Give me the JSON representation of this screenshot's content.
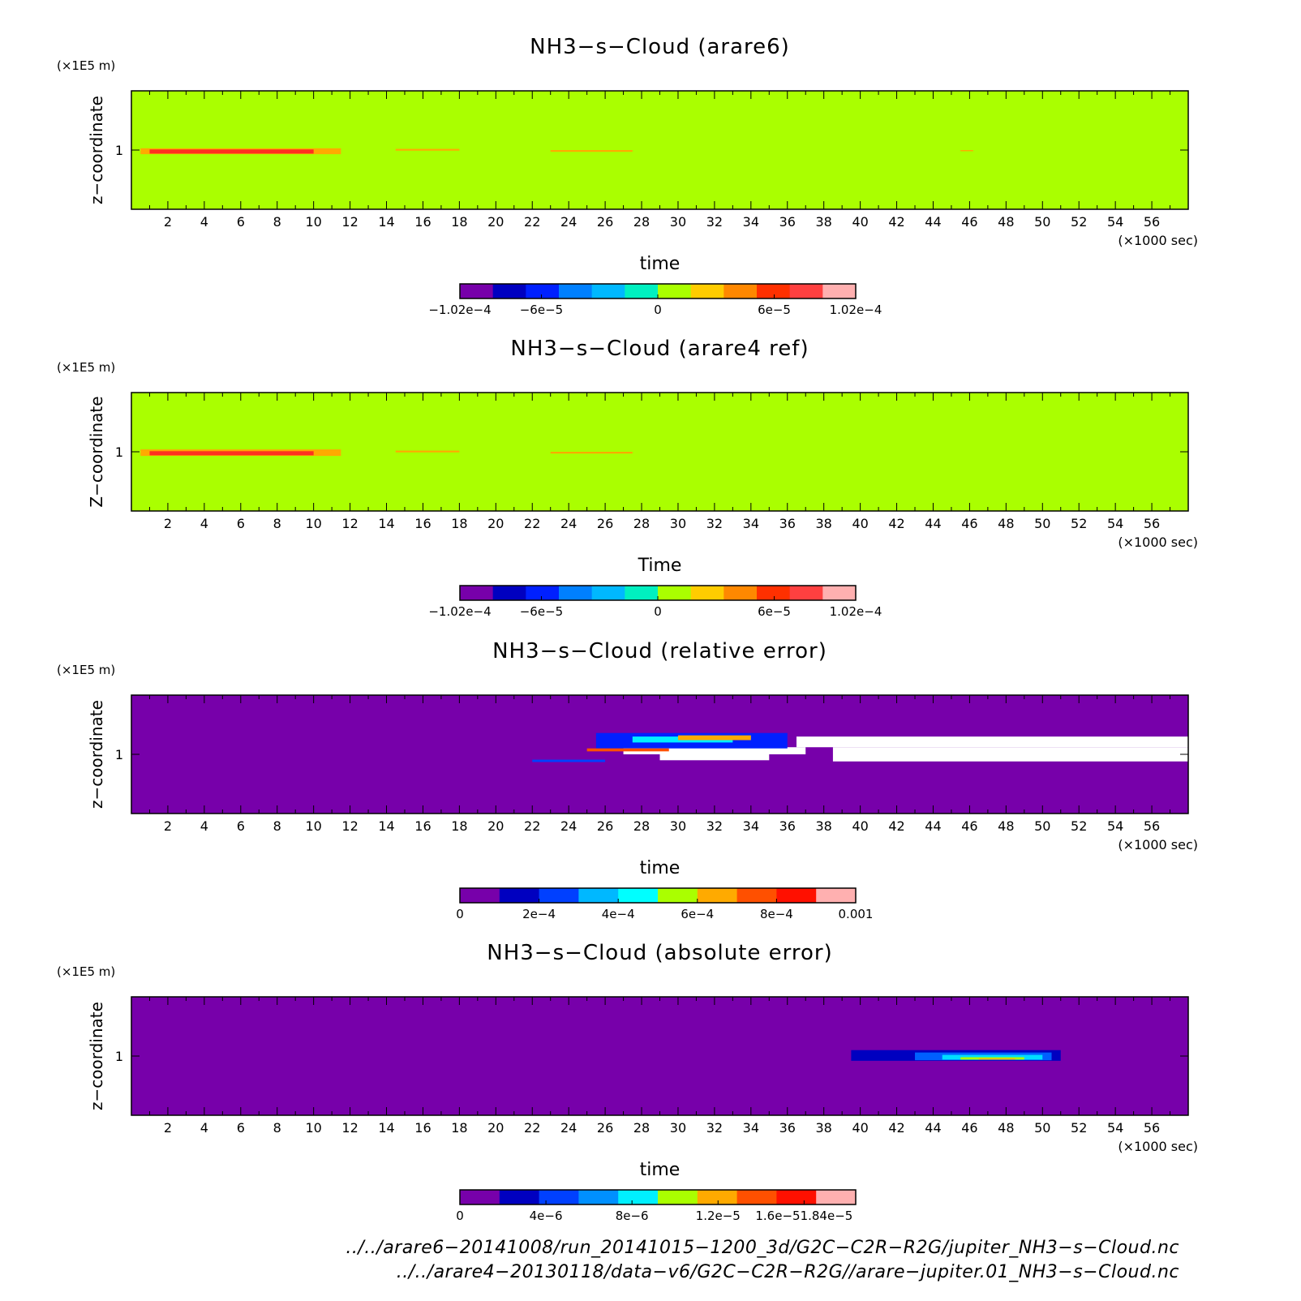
{
  "chart_data": [
    {
      "type": "heatmap",
      "title": "NH3−s−Cloud (arare6)",
      "xlabel": "time",
      "ylabel": "z−coordinate",
      "x_unit": "(×1000 sec)",
      "y_unit": "(×1E5 m)",
      "xlim": [
        0,
        58
      ],
      "ylim": [
        0,
        2
      ],
      "x_ticks": [
        "2",
        "4",
        "6",
        "8",
        "10",
        "12",
        "14",
        "16",
        "18",
        "20",
        "22",
        "24",
        "26",
        "28",
        "30",
        "32",
        "34",
        "36",
        "38",
        "40",
        "42",
        "44",
        "46",
        "48",
        "50",
        "52",
        "54",
        "56"
      ],
      "y_ticks": [
        "1"
      ],
      "background_color": "#aaff00",
      "features": [
        {
          "x": [
            0.5,
            11.5
          ],
          "y": [
            0.93,
            1.03
          ],
          "color": "#ffaa00"
        },
        {
          "x": [
            1.0,
            10.0
          ],
          "y": [
            0.94,
            1.01
          ],
          "color": "#ff3020"
        },
        {
          "x": [
            14.5,
            18.0
          ],
          "y": [
            0.99,
            1.02
          ],
          "color": "#ffaa00"
        },
        {
          "x": [
            23.0,
            27.5
          ],
          "y": [
            0.97,
            1.0
          ],
          "color": "#ffaa00"
        },
        {
          "x": [
            45.5,
            46.2
          ],
          "y": [
            0.98,
            1.0
          ],
          "color": "#ffaa00"
        }
      ],
      "colorbar": {
        "colors": [
          "#7700aa",
          "#0000c0",
          "#0020ff",
          "#0080ff",
          "#00b8ff",
          "#00f0c0",
          "#aaff00",
          "#ffcc00",
          "#ff8800",
          "#ff3000",
          "#ff4040",
          "#ffb0b0"
        ],
        "tick_labels": [
          "−1.02e−4",
          "−6e−5",
          "0",
          "6e−5",
          "1.02e−4"
        ],
        "tick_values": [
          -0.000102,
          -6e-05,
          0,
          6e-05,
          0.000102
        ],
        "range": [
          -0.000102,
          0.000102
        ]
      }
    },
    {
      "type": "heatmap",
      "title": "NH3−s−Cloud (arare4 ref)",
      "xlabel": "Time",
      "ylabel": "Z−coordinate",
      "x_unit": "(×1000 sec)",
      "y_unit": "(×1E5 m)",
      "xlim": [
        0,
        58
      ],
      "ylim": [
        0,
        2
      ],
      "x_ticks": [
        "2",
        "4",
        "6",
        "8",
        "10",
        "12",
        "14",
        "16",
        "18",
        "20",
        "22",
        "24",
        "26",
        "28",
        "30",
        "32",
        "34",
        "36",
        "38",
        "40",
        "42",
        "44",
        "46",
        "48",
        "50",
        "52",
        "54",
        "56"
      ],
      "y_ticks": [
        "1"
      ],
      "background_color": "#aaff00",
      "features": [
        {
          "x": [
            0.5,
            11.5
          ],
          "y": [
            0.93,
            1.04
          ],
          "color": "#ffaa00"
        },
        {
          "x": [
            1.0,
            10.0
          ],
          "y": [
            0.94,
            1.01
          ],
          "color": "#ff3020"
        },
        {
          "x": [
            14.5,
            18.0
          ],
          "y": [
            0.99,
            1.02
          ],
          "color": "#ffaa00"
        },
        {
          "x": [
            23.0,
            27.5
          ],
          "y": [
            0.97,
            1.0
          ],
          "color": "#ffaa00"
        }
      ],
      "colorbar": {
        "colors": [
          "#7700aa",
          "#0000c0",
          "#0020ff",
          "#0080ff",
          "#00b8ff",
          "#00f0c0",
          "#aaff00",
          "#ffcc00",
          "#ff8800",
          "#ff3000",
          "#ff4040",
          "#ffb0b0"
        ],
        "tick_labels": [
          "−1.02e−4",
          "−6e−5",
          "0",
          "6e−5",
          "1.02e−4"
        ],
        "tick_values": [
          -0.000102,
          -6e-05,
          0,
          6e-05,
          0.000102
        ],
        "range": [
          -0.000102,
          0.000102
        ]
      }
    },
    {
      "type": "heatmap",
      "title": "NH3−s−Cloud (relative error)",
      "xlabel": "time",
      "ylabel": "z−coordinate",
      "x_unit": "(×1000 sec)",
      "y_unit": "(×1E5 m)",
      "xlim": [
        0,
        58
      ],
      "ylim": [
        0,
        2
      ],
      "x_ticks": [
        "2",
        "4",
        "6",
        "8",
        "10",
        "12",
        "14",
        "16",
        "18",
        "20",
        "22",
        "24",
        "26",
        "28",
        "30",
        "32",
        "34",
        "36",
        "38",
        "40",
        "42",
        "44",
        "46",
        "48",
        "50",
        "52",
        "54",
        "56"
      ],
      "y_ticks": [
        "1"
      ],
      "background_color": "#7700aa",
      "features": [
        {
          "x": [
            36.5,
            58.0
          ],
          "y": [
            1.12,
            1.3
          ],
          "color": "#ffffff"
        },
        {
          "x": [
            38.5,
            58.0
          ],
          "y": [
            0.88,
            1.12
          ],
          "color": "#ffffff"
        },
        {
          "x": [
            29.0,
            35.0
          ],
          "y": [
            0.9,
            1.0
          ],
          "color": "#ffffff"
        },
        {
          "x": [
            27.0,
            37.0
          ],
          "y": [
            1.0,
            1.12
          ],
          "color": "#ffffff"
        },
        {
          "x": [
            22.0,
            26.0
          ],
          "y": [
            0.87,
            0.91
          ],
          "color": "#0040ff"
        },
        {
          "x": [
            25.5,
            36.0
          ],
          "y": [
            1.1,
            1.36
          ],
          "color": "#0020ff"
        },
        {
          "x": [
            27.5,
            33.0
          ],
          "y": [
            1.2,
            1.3
          ],
          "color": "#00f0ff"
        },
        {
          "x": [
            25.0,
            29.5
          ],
          "y": [
            1.05,
            1.1
          ],
          "color": "#ff5000"
        },
        {
          "x": [
            30.0,
            34.0
          ],
          "y": [
            1.24,
            1.32
          ],
          "color": "#ffaa00"
        }
      ],
      "colorbar": {
        "colors": [
          "#7700aa",
          "#0000c0",
          "#0040ff",
          "#00b8ff",
          "#00ffff",
          "#aaff00",
          "#ffaa00",
          "#ff5000",
          "#ff1000",
          "#ffb0b0"
        ],
        "tick_labels": [
          "0",
          "2e−4",
          "4e−4",
          "6e−4",
          "8e−4",
          "0.001"
        ],
        "tick_values": [
          0,
          0.0002,
          0.0004,
          0.0006,
          0.0008,
          0.001
        ],
        "range": [
          0,
          0.001
        ]
      }
    },
    {
      "type": "heatmap",
      "title": "NH3−s−Cloud (absolute error)",
      "xlabel": "time",
      "ylabel": "z−coordinate",
      "x_unit": "(×1000 sec)",
      "y_unit": "(×1E5 m)",
      "xlim": [
        0,
        58
      ],
      "ylim": [
        0,
        2
      ],
      "x_ticks": [
        "2",
        "4",
        "6",
        "8",
        "10",
        "12",
        "14",
        "16",
        "18",
        "20",
        "22",
        "24",
        "26",
        "28",
        "30",
        "32",
        "34",
        "36",
        "38",
        "40",
        "42",
        "44",
        "46",
        "48",
        "50",
        "52",
        "54",
        "56"
      ],
      "y_ticks": [
        "1"
      ],
      "background_color": "#7700aa",
      "features": [
        {
          "x": [
            39.5,
            51.0
          ],
          "y": [
            0.92,
            1.1
          ],
          "color": "#0000c0"
        },
        {
          "x": [
            43.0,
            50.5
          ],
          "y": [
            0.93,
            1.06
          ],
          "color": "#0060ff"
        },
        {
          "x": [
            44.5,
            50.0
          ],
          "y": [
            0.94,
            1.02
          ],
          "color": "#00ddff"
        },
        {
          "x": [
            45.5,
            49.0
          ],
          "y": [
            0.94,
            0.98
          ],
          "color": "#aaff00"
        },
        {
          "x": [
            46.5,
            48.5
          ],
          "y": [
            0.94,
            0.96
          ],
          "color": "#ffaa00"
        }
      ],
      "colorbar": {
        "colors": [
          "#7700aa",
          "#0000c0",
          "#0040ff",
          "#0090ff",
          "#00f0ff",
          "#aaff00",
          "#ffaa00",
          "#ff5000",
          "#ff1000",
          "#ffb0b0"
        ],
        "tick_labels": [
          "0",
          "4e−6",
          "8e−6",
          "1.2e−5",
          "1.6e−51.84e−5"
        ],
        "tick_values": [
          0,
          4e-06,
          8e-06,
          1.2e-05,
          1.6e-05
        ],
        "range": [
          0,
          1.84e-05
        ]
      }
    }
  ],
  "footer": {
    "source_file_1": "../../arare6−20141008/run_20141015−1200_3d/G2C−C2R−R2G/jupiter_NH3−s−Cloud.nc",
    "source_file_2": "../../arare4−20130118/data−v6/G2C−C2R−R2G//arare−jupiter.01_NH3−s−Cloud.nc"
  }
}
